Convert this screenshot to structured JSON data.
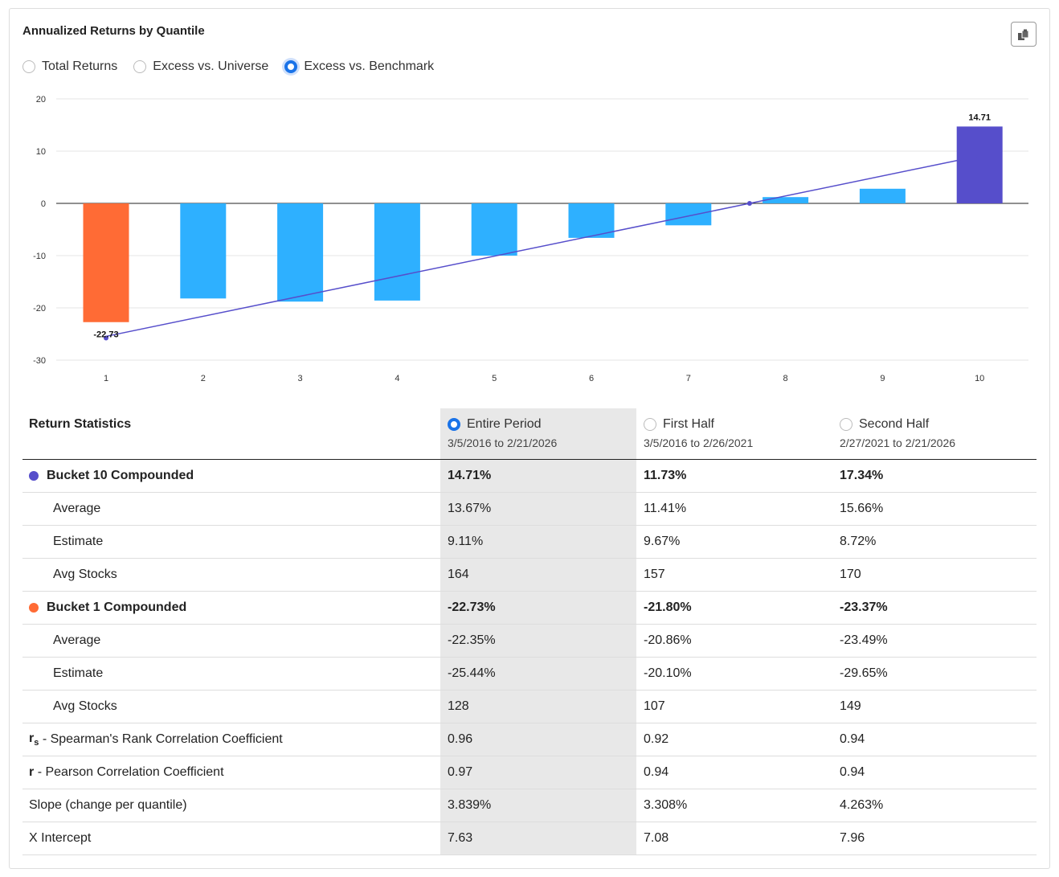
{
  "title": "Annualized Returns by Quantile",
  "copy_icon": "clipboard-copy-icon",
  "modes": [
    {
      "label": "Total Returns",
      "selected": false
    },
    {
      "label": "Excess vs. Universe",
      "selected": false
    },
    {
      "label": "Excess vs. Benchmark",
      "selected": true
    }
  ],
  "colors": {
    "bottom": "#ff6b35",
    "middle": "#2eb0ff",
    "top": "#564ecb",
    "line": "#564ecb"
  },
  "chart_data": {
    "type": "bar",
    "categories": [
      "1",
      "2",
      "3",
      "4",
      "5",
      "6",
      "7",
      "8",
      "9",
      "10"
    ],
    "values": [
      -22.73,
      -18.2,
      -18.8,
      -18.6,
      -10.0,
      -6.6,
      -4.2,
      1.2,
      2.8,
      14.71
    ],
    "data_labels": {
      "0": "-22.73",
      "9": "14.71"
    },
    "ylim": [
      -30,
      20
    ],
    "yticks": [
      20,
      10,
      0,
      -10,
      -20,
      -30
    ],
    "trendline": {
      "slope": 3.839,
      "x_intercept": 7.63
    },
    "grid": true
  },
  "table": {
    "title": "Return Statistics",
    "periods": [
      {
        "label": "Entire Period",
        "range": "3/5/2016 to 2/21/2026",
        "selected": true
      },
      {
        "label": "First Half",
        "range": "3/5/2016 to 2/26/2021",
        "selected": false
      },
      {
        "label": "Second Half",
        "range": "2/27/2021 to 2/21/2026",
        "selected": false
      }
    ],
    "rows": [
      {
        "label": "Bucket 10 Compounded",
        "type": "head",
        "dot": "top",
        "values": [
          "14.71%",
          "11.73%",
          "17.34%"
        ]
      },
      {
        "label": "Average",
        "type": "sub",
        "values": [
          "13.67%",
          "11.41%",
          "15.66%"
        ]
      },
      {
        "label": "Estimate",
        "type": "sub",
        "values": [
          "9.11%",
          "9.67%",
          "8.72%"
        ]
      },
      {
        "label": "Avg Stocks",
        "type": "sub",
        "values": [
          "164",
          "157",
          "170"
        ]
      },
      {
        "label": "Bucket 1 Compounded",
        "type": "head",
        "dot": "bottom",
        "values": [
          "-22.73%",
          "-21.80%",
          "-23.37%"
        ]
      },
      {
        "label": "Average",
        "type": "sub",
        "values": [
          "-22.35%",
          "-20.86%",
          "-23.49%"
        ]
      },
      {
        "label": "Estimate",
        "type": "sub",
        "values": [
          "-25.44%",
          "-20.10%",
          "-29.65%"
        ]
      },
      {
        "label": "Avg Stocks",
        "type": "sub",
        "values": [
          "128",
          "107",
          "149"
        ]
      },
      {
        "label": "- Spearman's Rank Correlation Coefficient",
        "sym": "r",
        "symsub": "s",
        "type": "plain",
        "values": [
          "0.96",
          "0.92",
          "0.94"
        ]
      },
      {
        "label": "- Pearson Correlation Coefficient",
        "sym": "r",
        "type": "plain",
        "values": [
          "0.97",
          "0.94",
          "0.94"
        ]
      },
      {
        "label": "Slope (change per quantile)",
        "type": "plain",
        "values": [
          "3.839%",
          "3.308%",
          "4.263%"
        ]
      },
      {
        "label": "X Intercept",
        "type": "plain",
        "values": [
          "7.63",
          "7.08",
          "7.96"
        ]
      }
    ]
  }
}
